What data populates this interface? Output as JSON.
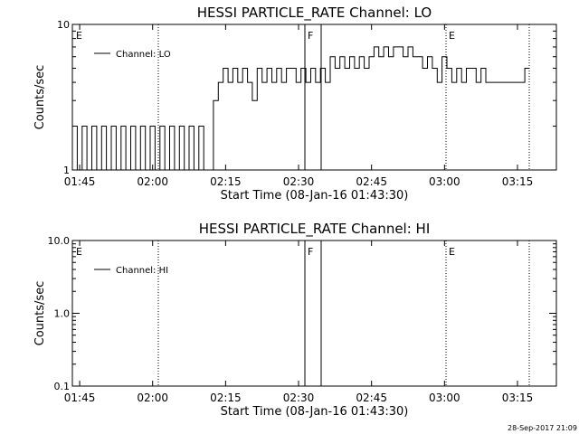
{
  "chart_data": [
    {
      "type": "line",
      "title": "HESSI PARTICLE_RATE Channel: LO",
      "xlabel": "Start Time (08-Jan-16 01:43:30)",
      "ylabel": "Counts/sec",
      "y_scale": "log",
      "ylim": [
        1,
        10
      ],
      "xlim": [
        "01:43:30",
        "03:23:00"
      ],
      "x_ticks": [
        "01:45",
        "02:00",
        "02:15",
        "02:30",
        "02:45",
        "03:00",
        "03:15"
      ],
      "y_ticks": [
        "1",
        "10"
      ],
      "legend": "top-left",
      "grid": false,
      "series": [
        {
          "name": "Channel: LO",
          "x": [
            "01:43:30",
            "01:44:30",
            "01:45:30",
            "01:46:30",
            "01:47:30",
            "01:48:30",
            "01:49:30",
            "01:50:30",
            "01:51:30",
            "01:52:30",
            "01:53:30",
            "01:54:30",
            "01:55:30",
            "01:56:30",
            "01:57:30",
            "01:58:30",
            "01:59:30",
            "02:00:30",
            "02:01:30",
            "02:02:30",
            "02:03:30",
            "02:04:30",
            "02:05:30",
            "02:06:30",
            "02:07:30",
            "02:08:30",
            "02:09:30",
            "02:10:30",
            "02:11:30",
            "02:12:30",
            "02:13:30",
            "02:14:30",
            "02:15:30",
            "02:16:30",
            "02:17:30",
            "02:18:30",
            "02:19:30",
            "02:20:30",
            "02:21:30",
            "02:22:30",
            "02:23:30",
            "02:24:30",
            "02:25:30",
            "02:26:30",
            "02:27:30",
            "02:28:30",
            "02:29:30",
            "02:30:30",
            "02:31:30",
            "02:32:30",
            "02:33:30",
            "02:34:30",
            "02:35:30",
            "02:36:30",
            "02:37:30",
            "02:38:30",
            "02:39:30",
            "02:40:30",
            "02:41:30",
            "02:42:30",
            "02:43:30",
            "02:44:30",
            "02:45:30",
            "02:46:30",
            "02:47:30",
            "02:48:30",
            "02:49:30",
            "02:50:30",
            "02:51:30",
            "02:52:30",
            "02:53:30",
            "02:54:30",
            "02:55:30",
            "02:56:30",
            "02:57:30",
            "02:58:30",
            "02:59:30",
            "03:00:30",
            "03:01:30",
            "03:02:30",
            "03:03:30",
            "03:04:30",
            "03:05:30",
            "03:06:30",
            "03:07:30",
            "03:08:30",
            "03:09:30",
            "03:10:30",
            "03:11:30",
            "03:12:30",
            "03:13:30",
            "03:14:30",
            "03:15:30",
            "03:16:30"
          ],
          "y": [
            2,
            1,
            2,
            1,
            2,
            1,
            2,
            1,
            2,
            1,
            2,
            1,
            2,
            1,
            2,
            1,
            2,
            1,
            2,
            1,
            2,
            1,
            2,
            1,
            2,
            1,
            2,
            1,
            1,
            3,
            4,
            5,
            4,
            5,
            4,
            5,
            4,
            3,
            5,
            4,
            5,
            4,
            5,
            4,
            5,
            5,
            4,
            5,
            4,
            5,
            4,
            5,
            4,
            6,
            5,
            6,
            5,
            6,
            5,
            6,
            5,
            6,
            7,
            6,
            7,
            6,
            7,
            7,
            6,
            7,
            6,
            6,
            5,
            6,
            5,
            4,
            6,
            5,
            4,
            5,
            4,
            5,
            5,
            4,
            5,
            4,
            4,
            4,
            4,
            4,
            4,
            4,
            4,
            5
          ],
          "y_note": ""
        }
      ],
      "annotations": [
        {
          "label": "E",
          "x": "01:43:30"
        },
        {
          "label": "F",
          "x": "02:32:30"
        },
        {
          "label": "E",
          "x": "03:01:30"
        }
      ]
    },
    {
      "type": "line",
      "title": "HESSI PARTICLE_RATE Channel: HI",
      "xlabel": "Start Time (08-Jan-16 01:43:30)",
      "ylabel": "Counts/sec",
      "y_scale": "log",
      "ylim": [
        0.1,
        10
      ],
      "xlim": [
        "01:43:30",
        "03:23:00"
      ],
      "x_ticks": [
        "01:45",
        "02:00",
        "02:15",
        "02:30",
        "02:45",
        "03:00",
        "03:15"
      ],
      "y_ticks": [
        "10.0",
        "1.0",
        "0.1"
      ],
      "legend": "top-left",
      "grid": false,
      "series": [
        {
          "name": "Channel: HI",
          "x": [],
          "y": []
        }
      ],
      "annotations": [
        {
          "label": "E",
          "x": "01:43:30"
        },
        {
          "label": "F",
          "x": "02:32:30"
        },
        {
          "label": "E",
          "x": "03:01:30"
        }
      ]
    }
  ],
  "footer": {
    "timestamp": "28-Sep-2017 21:09"
  },
  "colors": {
    "background": "#ffffff",
    "foreground": "#000000"
  }
}
